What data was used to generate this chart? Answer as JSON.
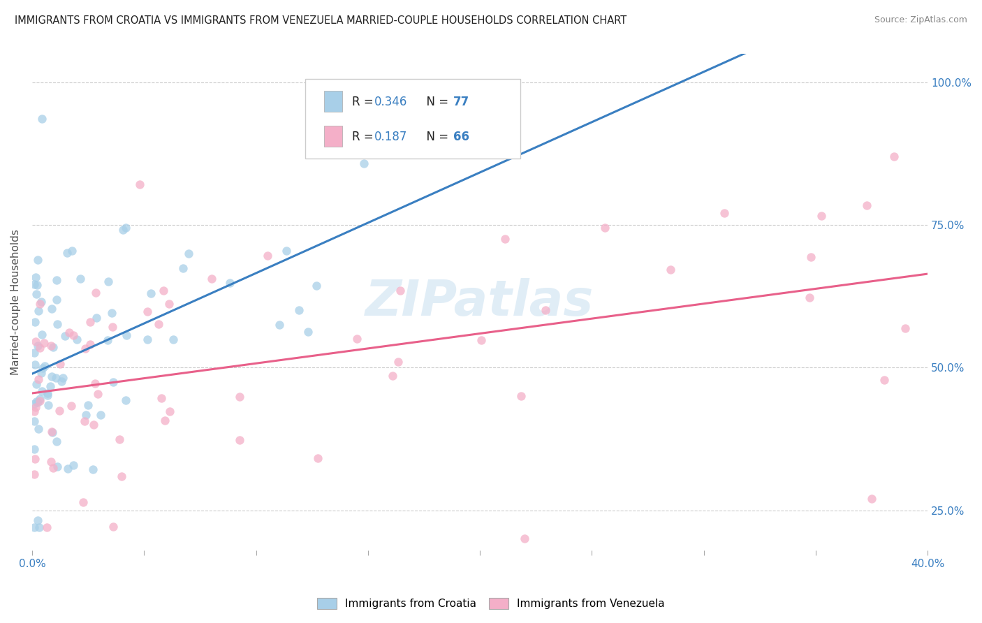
{
  "title": "IMMIGRANTS FROM CROATIA VS IMMIGRANTS FROM VENEZUELA MARRIED-COUPLE HOUSEHOLDS CORRELATION CHART",
  "source": "Source: ZipAtlas.com",
  "ylabel": "Married-couple Households",
  "xlim": [
    0.0,
    0.4
  ],
  "ylim": [
    0.18,
    1.05
  ],
  "yticks": [
    0.25,
    0.5,
    0.75,
    1.0
  ],
  "ytick_labels": [
    "25.0%",
    "50.0%",
    "75.0%",
    "100.0%"
  ],
  "croatia_color": "#a8cfe8",
  "venezuela_color": "#f4afc8",
  "croatia_line_color": "#3a7fc1",
  "venezuela_line_color": "#e8608a",
  "background_color": "#ffffff",
  "grid_color": "#cccccc",
  "watermark": "ZIPatlas",
  "legend_r1": "R = ",
  "legend_v1": "0.346",
  "legend_n1_label": "  N = ",
  "legend_n1_val": "77",
  "legend_r2": "R = ",
  "legend_v2": "0.187",
  "legend_n2_label": "  N = ",
  "legend_n2_val": "66",
  "croatia_seed": 42,
  "venezuela_seed": 99
}
